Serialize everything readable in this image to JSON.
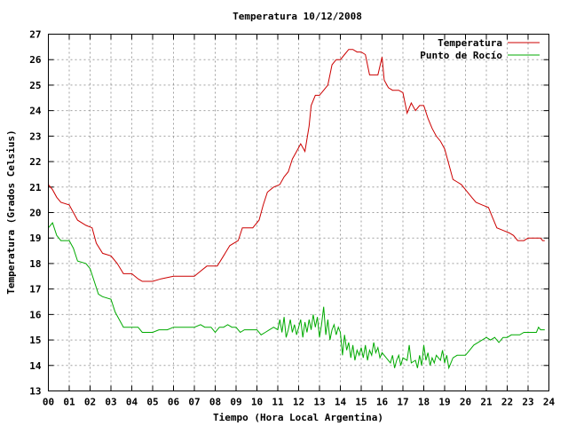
{
  "chart_data": {
    "type": "line",
    "title": "Temperatura 10/12/2008",
    "xlabel": "Tiempo (Hora Local Argentina)",
    "ylabel": "Temperatura (Grados Celsius)",
    "xlim": [
      0,
      24
    ],
    "ylim": [
      13,
      27
    ],
    "grid": true,
    "legend_position": "top-right",
    "x_tick_labels": [
      "00",
      "01",
      "02",
      "03",
      "04",
      "05",
      "06",
      "07",
      "08",
      "09",
      "10",
      "11",
      "12",
      "13",
      "14",
      "15",
      "16",
      "17",
      "18",
      "19",
      "20",
      "21",
      "22",
      "23",
      "24"
    ],
    "y_ticks": [
      13,
      14,
      15,
      16,
      17,
      18,
      19,
      20,
      21,
      22,
      23,
      24,
      25,
      26,
      27
    ],
    "series": [
      {
        "name": "Temperatura",
        "color": "#cc0000",
        "points": [
          [
            0.0,
            21.1
          ],
          [
            0.2,
            20.9
          ],
          [
            0.4,
            20.6
          ],
          [
            0.6,
            20.4
          ],
          [
            1.0,
            20.3
          ],
          [
            1.2,
            20.0
          ],
          [
            1.4,
            19.7
          ],
          [
            1.8,
            19.5
          ],
          [
            2.1,
            19.4
          ],
          [
            2.3,
            18.8
          ],
          [
            2.6,
            18.4
          ],
          [
            3.0,
            18.3
          ],
          [
            3.3,
            18.0
          ],
          [
            3.6,
            17.6
          ],
          [
            4.0,
            17.6
          ],
          [
            4.3,
            17.4
          ],
          [
            4.5,
            17.3
          ],
          [
            5.0,
            17.3
          ],
          [
            5.4,
            17.4
          ],
          [
            6.0,
            17.5
          ],
          [
            6.5,
            17.5
          ],
          [
            7.0,
            17.5
          ],
          [
            7.3,
            17.7
          ],
          [
            7.6,
            17.9
          ],
          [
            8.1,
            17.9
          ],
          [
            8.4,
            18.3
          ],
          [
            8.7,
            18.7
          ],
          [
            9.1,
            18.9
          ],
          [
            9.3,
            19.4
          ],
          [
            9.8,
            19.4
          ],
          [
            10.1,
            19.7
          ],
          [
            10.3,
            20.3
          ],
          [
            10.5,
            20.8
          ],
          [
            10.8,
            21.0
          ],
          [
            11.1,
            21.1
          ],
          [
            11.3,
            21.4
          ],
          [
            11.5,
            21.6
          ],
          [
            11.7,
            22.1
          ],
          [
            11.9,
            22.4
          ],
          [
            12.1,
            22.7
          ],
          [
            12.3,
            22.4
          ],
          [
            12.5,
            23.4
          ],
          [
            12.6,
            24.2
          ],
          [
            12.8,
            24.6
          ],
          [
            13.0,
            24.6
          ],
          [
            13.2,
            24.8
          ],
          [
            13.4,
            25.0
          ],
          [
            13.6,
            25.8
          ],
          [
            13.8,
            26.0
          ],
          [
            14.0,
            26.0
          ],
          [
            14.2,
            26.2
          ],
          [
            14.4,
            26.4
          ],
          [
            14.6,
            26.4
          ],
          [
            14.8,
            26.3
          ],
          [
            15.0,
            26.3
          ],
          [
            15.2,
            26.2
          ],
          [
            15.4,
            25.4
          ],
          [
            15.6,
            25.4
          ],
          [
            15.8,
            25.4
          ],
          [
            16.0,
            26.1
          ],
          [
            16.1,
            25.2
          ],
          [
            16.3,
            24.9
          ],
          [
            16.5,
            24.8
          ],
          [
            16.8,
            24.8
          ],
          [
            17.0,
            24.7
          ],
          [
            17.2,
            23.9
          ],
          [
            17.4,
            24.3
          ],
          [
            17.6,
            24.0
          ],
          [
            17.8,
            24.2
          ],
          [
            18.0,
            24.2
          ],
          [
            18.2,
            23.7
          ],
          [
            18.4,
            23.3
          ],
          [
            18.6,
            23.0
          ],
          [
            18.8,
            22.8
          ],
          [
            19.0,
            22.5
          ],
          [
            19.2,
            21.9
          ],
          [
            19.4,
            21.3
          ],
          [
            19.6,
            21.2
          ],
          [
            19.8,
            21.1
          ],
          [
            20.0,
            20.9
          ],
          [
            20.3,
            20.6
          ],
          [
            20.5,
            20.4
          ],
          [
            20.8,
            20.3
          ],
          [
            21.1,
            20.2
          ],
          [
            21.3,
            19.8
          ],
          [
            21.5,
            19.4
          ],
          [
            21.8,
            19.3
          ],
          [
            22.1,
            19.2
          ],
          [
            22.3,
            19.1
          ],
          [
            22.5,
            18.9
          ],
          [
            22.8,
            18.9
          ],
          [
            23.0,
            19.0
          ],
          [
            23.3,
            19.0
          ],
          [
            23.6,
            19.0
          ],
          [
            23.7,
            18.9
          ],
          [
            23.8,
            18.9
          ]
        ]
      },
      {
        "name": "Punto de Rocío",
        "color": "#00aa00",
        "points": [
          [
            0.0,
            19.4
          ],
          [
            0.2,
            19.6
          ],
          [
            0.4,
            19.1
          ],
          [
            0.6,
            18.9
          ],
          [
            1.0,
            18.9
          ],
          [
            1.2,
            18.6
          ],
          [
            1.4,
            18.1
          ],
          [
            1.8,
            18.0
          ],
          [
            2.0,
            17.8
          ],
          [
            2.2,
            17.3
          ],
          [
            2.4,
            16.8
          ],
          [
            2.6,
            16.7
          ],
          [
            3.0,
            16.6
          ],
          [
            3.2,
            16.1
          ],
          [
            3.4,
            15.8
          ],
          [
            3.6,
            15.5
          ],
          [
            4.0,
            15.5
          ],
          [
            4.3,
            15.5
          ],
          [
            4.5,
            15.3
          ],
          [
            5.0,
            15.3
          ],
          [
            5.3,
            15.4
          ],
          [
            5.7,
            15.4
          ],
          [
            6.0,
            15.5
          ],
          [
            6.5,
            15.5
          ],
          [
            7.0,
            15.5
          ],
          [
            7.3,
            15.6
          ],
          [
            7.5,
            15.5
          ],
          [
            7.8,
            15.5
          ],
          [
            8.0,
            15.3
          ],
          [
            8.2,
            15.5
          ],
          [
            8.4,
            15.5
          ],
          [
            8.6,
            15.6
          ],
          [
            8.8,
            15.5
          ],
          [
            9.0,
            15.5
          ],
          [
            9.2,
            15.3
          ],
          [
            9.4,
            15.4
          ],
          [
            9.6,
            15.4
          ],
          [
            9.8,
            15.4
          ],
          [
            10.0,
            15.4
          ],
          [
            10.2,
            15.2
          ],
          [
            10.4,
            15.3
          ],
          [
            10.6,
            15.4
          ],
          [
            10.8,
            15.5
          ],
          [
            11.0,
            15.4
          ],
          [
            11.1,
            15.8
          ],
          [
            11.2,
            15.3
          ],
          [
            11.3,
            15.9
          ],
          [
            11.4,
            15.1
          ],
          [
            11.5,
            15.4
          ],
          [
            11.6,
            15.8
          ],
          [
            11.7,
            15.3
          ],
          [
            11.8,
            15.6
          ],
          [
            11.9,
            15.2
          ],
          [
            12.0,
            15.5
          ],
          [
            12.1,
            15.8
          ],
          [
            12.2,
            15.1
          ],
          [
            12.3,
            15.7
          ],
          [
            12.4,
            15.3
          ],
          [
            12.5,
            15.8
          ],
          [
            12.6,
            15.4
          ],
          [
            12.7,
            16.0
          ],
          [
            12.8,
            15.5
          ],
          [
            12.9,
            15.9
          ],
          [
            13.0,
            15.1
          ],
          [
            13.1,
            15.6
          ],
          [
            13.2,
            16.3
          ],
          [
            13.3,
            15.2
          ],
          [
            13.4,
            15.8
          ],
          [
            13.5,
            15.0
          ],
          [
            13.6,
            15.4
          ],
          [
            13.7,
            15.6
          ],
          [
            13.8,
            15.2
          ],
          [
            13.9,
            15.5
          ],
          [
            14.0,
            15.3
          ],
          [
            14.1,
            14.4
          ],
          [
            14.2,
            15.2
          ],
          [
            14.3,
            14.6
          ],
          [
            14.4,
            14.9
          ],
          [
            14.5,
            14.3
          ],
          [
            14.6,
            14.8
          ],
          [
            14.7,
            14.2
          ],
          [
            14.8,
            14.6
          ],
          [
            14.9,
            14.4
          ],
          [
            15.0,
            14.7
          ],
          [
            15.1,
            14.3
          ],
          [
            15.2,
            14.8
          ],
          [
            15.3,
            14.2
          ],
          [
            15.4,
            14.6
          ],
          [
            15.5,
            14.4
          ],
          [
            15.6,
            14.9
          ],
          [
            15.7,
            14.5
          ],
          [
            15.8,
            14.7
          ],
          [
            15.9,
            14.3
          ],
          [
            16.0,
            14.5
          ],
          [
            16.2,
            14.3
          ],
          [
            16.4,
            14.1
          ],
          [
            16.5,
            14.4
          ],
          [
            16.6,
            13.9
          ],
          [
            16.7,
            14.2
          ],
          [
            16.8,
            14.4
          ],
          [
            16.9,
            14.0
          ],
          [
            17.0,
            14.3
          ],
          [
            17.2,
            14.2
          ],
          [
            17.3,
            14.8
          ],
          [
            17.4,
            14.1
          ],
          [
            17.6,
            14.2
          ],
          [
            17.7,
            13.9
          ],
          [
            17.8,
            14.4
          ],
          [
            17.9,
            14.0
          ],
          [
            18.0,
            14.8
          ],
          [
            18.1,
            14.2
          ],
          [
            18.2,
            14.5
          ],
          [
            18.3,
            14.0
          ],
          [
            18.4,
            14.3
          ],
          [
            18.5,
            14.1
          ],
          [
            18.6,
            14.4
          ],
          [
            18.8,
            14.2
          ],
          [
            18.9,
            14.6
          ],
          [
            19.0,
            14.1
          ],
          [
            19.1,
            14.4
          ],
          [
            19.2,
            13.9
          ],
          [
            19.4,
            14.3
          ],
          [
            19.6,
            14.4
          ],
          [
            19.8,
            14.4
          ],
          [
            20.0,
            14.4
          ],
          [
            20.2,
            14.6
          ],
          [
            20.4,
            14.8
          ],
          [
            20.6,
            14.9
          ],
          [
            20.8,
            15.0
          ],
          [
            21.0,
            15.1
          ],
          [
            21.2,
            15.0
          ],
          [
            21.4,
            15.1
          ],
          [
            21.6,
            14.9
          ],
          [
            21.8,
            15.1
          ],
          [
            22.0,
            15.1
          ],
          [
            22.2,
            15.2
          ],
          [
            22.4,
            15.2
          ],
          [
            22.6,
            15.2
          ],
          [
            22.8,
            15.3
          ],
          [
            23.0,
            15.3
          ],
          [
            23.2,
            15.3
          ],
          [
            23.4,
            15.3
          ],
          [
            23.5,
            15.5
          ],
          [
            23.6,
            15.4
          ],
          [
            23.8,
            15.4
          ]
        ]
      }
    ]
  }
}
